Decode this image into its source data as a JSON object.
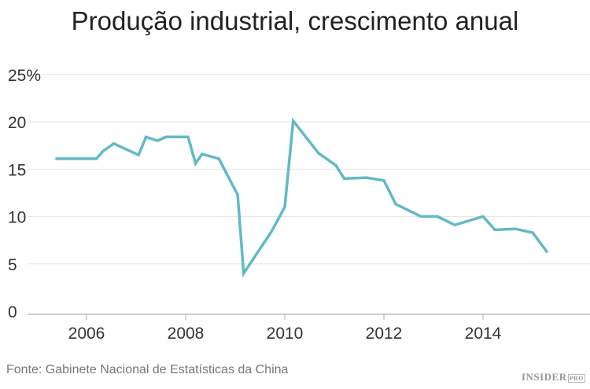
{
  "chart_data": {
    "type": "line",
    "title": "Produção industrial, crescimento anual",
    "xlabel": "",
    "ylabel": "",
    "xlim": [
      2005.0,
      2016.1
    ],
    "ylim": [
      0,
      25
    ],
    "x_ticks": [
      "2006",
      "2008",
      "2010",
      "2012",
      "2014"
    ],
    "y_ticks": [
      "0",
      "5",
      "10",
      "15",
      "20",
      "25%"
    ],
    "grid": true,
    "color": "#63b9c5",
    "series": [
      {
        "x": [
          2005.37,
          2006.2,
          2006.33,
          2006.55,
          2007.05,
          2007.2,
          2007.43,
          2007.6,
          2008.05,
          2008.2,
          2008.33,
          2008.67,
          2009.05,
          2009.17,
          2009.73,
          2010.0,
          2010.17,
          2010.68,
          2011.03,
          2011.2,
          2011.65,
          2012.0,
          2012.24,
          2012.75,
          2013.08,
          2013.43,
          2014.0,
          2014.24,
          2014.65,
          2015.0,
          2015.3
        ],
        "y": [
          16.1,
          16.1,
          16.9,
          17.7,
          16.5,
          18.4,
          18.0,
          18.4,
          18.4,
          15.6,
          16.6,
          16.1,
          12.3,
          4.0,
          8.4,
          11.0,
          20.1,
          16.7,
          15.4,
          14.0,
          14.1,
          13.8,
          11.3,
          10.0,
          10.0,
          9.1,
          10.0,
          8.6,
          8.7,
          8.3,
          6.2
        ]
      }
    ]
  },
  "source": "Fonte: Gabinete Nacional de Estatísticas da China",
  "logo": {
    "main": "INSIDER",
    "sub": "PRO"
  }
}
